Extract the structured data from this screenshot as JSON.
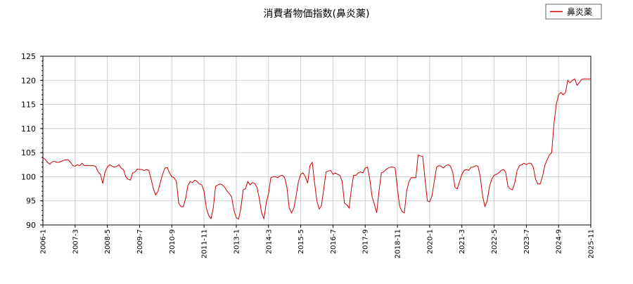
{
  "chart_data": {
    "type": "line",
    "title": "消費者物価指数(鼻炎薬)",
    "xlabel": "",
    "ylabel": "",
    "ylim": [
      90,
      125
    ],
    "yticks": [
      90,
      95,
      100,
      105,
      110,
      115,
      120,
      125
    ],
    "x_start": "2006-1",
    "x_end": "2025-11",
    "xticks": [
      "2006-1",
      "2007-3",
      "2008-5",
      "2009-7",
      "2010-9",
      "2011-11",
      "2013-1",
      "2014-3",
      "2015-5",
      "2016-7",
      "2017-9",
      "2018-11",
      "2020-1",
      "2021-3",
      "2022-5",
      "2023-7",
      "2024-9",
      "2025-11"
    ],
    "grid": true,
    "legend_position": "top-right",
    "colors": {
      "series": "#cc0000",
      "grid": "#cccccc",
      "axis": "#000000"
    },
    "series": [
      {
        "name": "鼻炎薬",
        "values": [
          104.0,
          103.6,
          103.0,
          102.6,
          103.1,
          103.2,
          103.0,
          103.0,
          103.2,
          103.4,
          103.5,
          103.5,
          103.0,
          102.3,
          102.2,
          102.5,
          102.3,
          102.8,
          102.3,
          102.3,
          102.3,
          102.3,
          102.3,
          102.1,
          101.0,
          100.5,
          98.6,
          101.0,
          102.0,
          102.5,
          102.2,
          102.0,
          102.1,
          102.5,
          101.8,
          101.5,
          100.0,
          99.5,
          99.3,
          100.8,
          101.0,
          101.6,
          101.5,
          101.5,
          101.3,
          101.5,
          101.3,
          99.5,
          97.5,
          96.2,
          97.0,
          98.8,
          100.5,
          101.8,
          101.9,
          100.8,
          100.0,
          99.8,
          99.0,
          94.5,
          93.8,
          93.8,
          95.5,
          98.2,
          99.0,
          98.8,
          99.3,
          99.0,
          98.5,
          98.3,
          97.0,
          93.5,
          92.0,
          91.3,
          93.5,
          98.0,
          98.3,
          98.5,
          98.3,
          97.8,
          97.0,
          96.5,
          95.8,
          93.0,
          91.5,
          91.2,
          93.5,
          97.3,
          97.5,
          99.0,
          98.3,
          98.8,
          98.6,
          97.8,
          95.5,
          92.5,
          91.3,
          94.5,
          96.5,
          99.8,
          100.0,
          100.0,
          99.8,
          100.2,
          100.3,
          99.8,
          97.8,
          93.5,
          92.5,
          93.5,
          96.0,
          99.0,
          100.5,
          100.8,
          100.0,
          98.7,
          102.3,
          103.0,
          98.8,
          95.0,
          93.3,
          94.0,
          97.5,
          101.0,
          101.2,
          101.3,
          100.5,
          100.8,
          100.5,
          100.3,
          99.0,
          94.5,
          94.2,
          93.5,
          97.5,
          100.3,
          100.3,
          100.8,
          101.0,
          100.8,
          101.8,
          102.0,
          99.5,
          95.8,
          94.3,
          92.5,
          97.0,
          100.8,
          101.0,
          101.5,
          101.8,
          102.0,
          102.0,
          101.8,
          97.5,
          93.8,
          92.8,
          92.5,
          97.0,
          99.0,
          99.8,
          99.8,
          99.8,
          104.5,
          104.3,
          104.2,
          99.5,
          95.0,
          94.8,
          96.0,
          99.0,
          102.0,
          102.3,
          102.2,
          101.8,
          102.3,
          102.5,
          102.2,
          101.0,
          97.8,
          97.5,
          99.0,
          100.5,
          101.3,
          101.5,
          101.3,
          102.0,
          102.0,
          102.3,
          102.2,
          100.0,
          96.0,
          93.8,
          95.0,
          98.0,
          99.5,
          100.3,
          100.5,
          100.8,
          101.3,
          101.5,
          101.0,
          98.0,
          97.5,
          97.3,
          98.8,
          101.3,
          102.3,
          102.5,
          102.8,
          102.5,
          102.8,
          102.8,
          102.0,
          99.5,
          98.5,
          98.5,
          100.0,
          102.3,
          103.5,
          104.5,
          105.0,
          111.0,
          115.0,
          117.0,
          117.5,
          117.0,
          117.5,
          120.0,
          119.5,
          120.0,
          120.3,
          119.0,
          119.5,
          120.2,
          120.3,
          120.3,
          120.3,
          120.3
        ]
      }
    ]
  }
}
